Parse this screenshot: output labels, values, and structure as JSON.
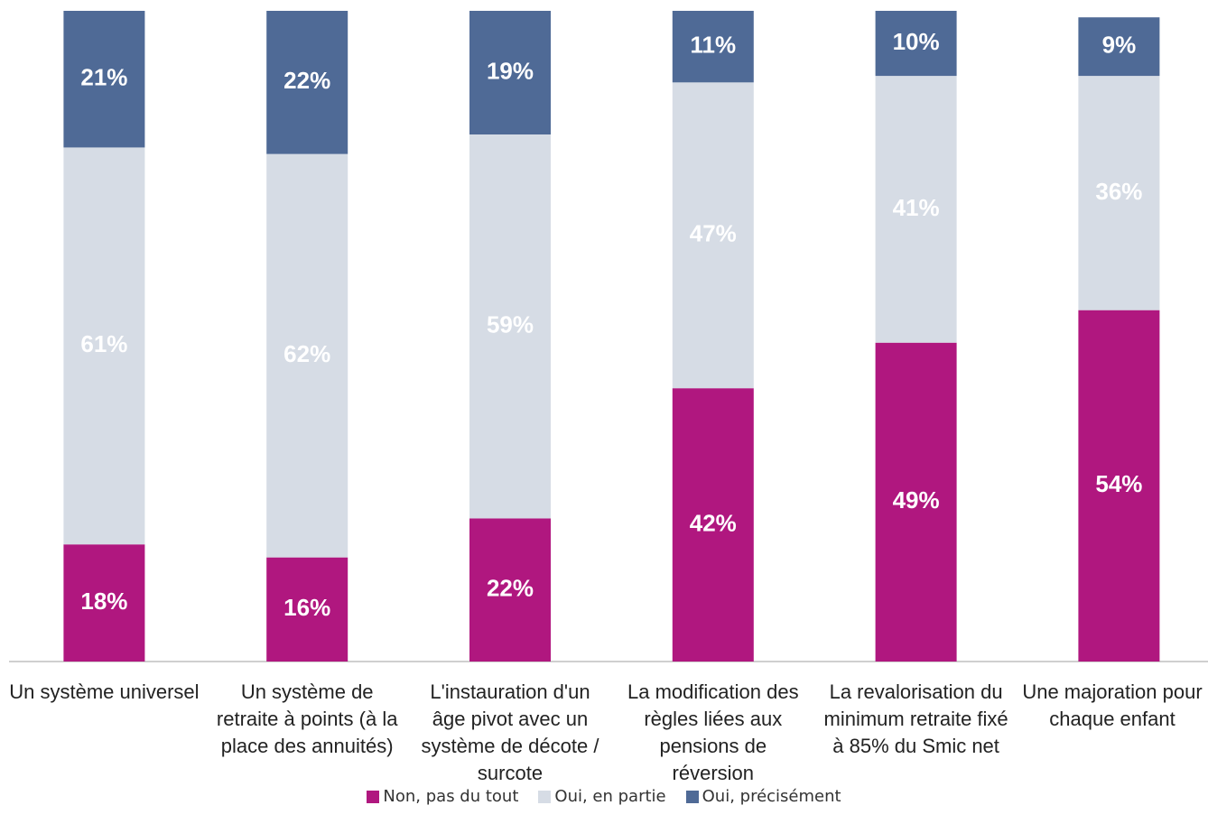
{
  "chart_data": {
    "type": "stacked_bar",
    "categories": [
      "Un système universel",
      "Un système de retraite à points (à la place des annuités)",
      "L'instauration d'un âge pivot avec un système de décote / surcote",
      "La modification des règles liées aux pensions de réversion",
      "La revalorisation du minimum retraite fixé à 85% du Smic net",
      "Une majoration pour chaque enfant"
    ],
    "series": [
      {
        "name": "Non, pas du tout",
        "color": "#b0177f",
        "values": [
          18,
          16,
          22,
          42,
          49,
          54
        ],
        "value_labels": [
          "18%",
          "16%",
          "22%",
          "42%",
          "49%",
          "54%"
        ]
      },
      {
        "name": "Oui, en partie",
        "color": "#d6dce5",
        "values": [
          61,
          62,
          59,
          47,
          41,
          36
        ],
        "value_labels": [
          "61%",
          "62%",
          "59%",
          "47%",
          "41%",
          "36%"
        ]
      },
      {
        "name": "Oui, précisément",
        "color": "#4f6a96",
        "values": [
          21,
          22,
          19,
          11,
          10,
          9
        ],
        "value_labels": [
          "21%",
          "22%",
          "19%",
          "11%",
          "10%",
          "9%"
        ]
      }
    ],
    "ylim": [
      0,
      100
    ],
    "legend": "bottom"
  }
}
